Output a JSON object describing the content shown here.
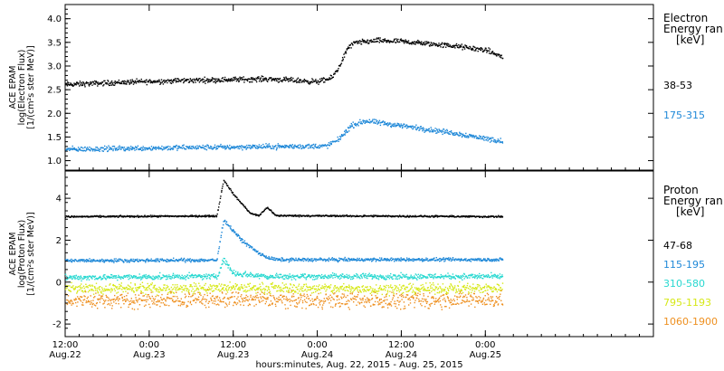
{
  "chart_data": [
    {
      "type": "scatter",
      "panel": "electron",
      "ylabel_lines": [
        "ACE EPAM",
        "log(Electron Flux)",
        "[1/(cm²s ster MeV)]"
      ],
      "ylim": [
        0.8,
        4.3
      ],
      "yticks": [
        "1.0",
        "1.5",
        "2.0",
        "2.5",
        "3.0",
        "3.5",
        "4.0"
      ],
      "ytick_values": [
        1.0,
        1.5,
        2.0,
        2.5,
        3.0,
        3.5,
        4.0
      ],
      "legend_title": [
        "Electron",
        "Energy ran",
        "[keV]"
      ],
      "series": [
        {
          "name": "38-53",
          "color": "#000000",
          "profile": [
            [
              0,
              2.62
            ],
            [
              0.35,
              2.67
            ],
            [
              0.75,
              2.71
            ],
            [
              1.2,
              2.74
            ],
            [
              1.5,
              2.68
            ],
            [
              1.58,
              2.75
            ],
            [
              1.62,
              2.95
            ],
            [
              1.68,
              3.4
            ],
            [
              1.72,
              3.5
            ],
            [
              1.85,
              3.55
            ],
            [
              2.0,
              3.53
            ],
            [
              2.3,
              3.44
            ],
            [
              2.5,
              3.35
            ],
            [
              2.6,
              3.2
            ]
          ],
          "noise": 0.08,
          "start": 0,
          "end": 2.6
        },
        {
          "name": "175-315",
          "color": "#1e88d8",
          "profile": [
            [
              0,
              1.25
            ],
            [
              0.5,
              1.28
            ],
            [
              1.0,
              1.3
            ],
            [
              1.55,
              1.32
            ],
            [
              1.62,
              1.45
            ],
            [
              1.7,
              1.75
            ],
            [
              1.78,
              1.85
            ],
            [
              2.0,
              1.75
            ],
            [
              2.3,
              1.6
            ],
            [
              2.6,
              1.42
            ]
          ],
          "noise": 0.08,
          "start": 0,
          "end": 2.6
        }
      ]
    },
    {
      "type": "scatter",
      "panel": "proton",
      "ylabel_lines": [
        "ACE EPAM",
        "log(Proton Flux)",
        "[1/(cm²s ster MeV)]"
      ],
      "ylim": [
        -2.6,
        5.3
      ],
      "yticks": [
        "-2",
        "0",
        "2",
        "4"
      ],
      "ytick_values": [
        -2,
        0,
        2,
        4
      ],
      "legend_title": [
        "Proton",
        "Energy ran",
        "[keV]"
      ],
      "series": [
        {
          "name": "47-68",
          "color": "#000000",
          "profile": [
            [
              0,
              3.15
            ],
            [
              0.9,
              3.18
            ],
            [
              0.94,
              4.9
            ],
            [
              1.0,
              4.2
            ],
            [
              1.1,
              3.3
            ],
            [
              1.15,
              3.2
            ],
            [
              1.2,
              3.6
            ],
            [
              1.25,
              3.2
            ],
            [
              2.6,
              3.15
            ]
          ],
          "noise": 0.06,
          "start": 0,
          "end": 2.6
        },
        {
          "name": "115-195",
          "color": "#1e88d8",
          "profile": [
            [
              0,
              1.05
            ],
            [
              0.9,
              1.08
            ],
            [
              0.94,
              3.0
            ],
            [
              1.05,
              2.0
            ],
            [
              1.15,
              1.4
            ],
            [
              1.2,
              1.2
            ],
            [
              1.25,
              1.1
            ],
            [
              2.6,
              1.1
            ]
          ],
          "noise": 0.12,
          "start": 0,
          "end": 2.6
        },
        {
          "name": "310-580",
          "color": "#27d8d0",
          "profile": [
            [
              0,
              0.25
            ],
            [
              0.9,
              0.3
            ],
            [
              0.94,
              1.1
            ],
            [
              1.0,
              0.45
            ],
            [
              1.2,
              0.3
            ],
            [
              2.6,
              0.3
            ]
          ],
          "noise": 0.2,
          "start": 0,
          "end": 2.6
        },
        {
          "name": "795-1193",
          "color": "#d6e817",
          "profile": [
            [
              0,
              -0.3
            ],
            [
              1.0,
              -0.25
            ],
            [
              2.0,
              -0.3
            ],
            [
              2.6,
              -0.25
            ]
          ],
          "noise": 0.35,
          "start": 0,
          "end": 2.6
        },
        {
          "name": "1060-1900",
          "color": "#ee9020",
          "profile": [
            [
              0,
              -0.85
            ],
            [
              1.0,
              -0.8
            ],
            [
              2.0,
              -0.85
            ],
            [
              2.6,
              -0.8
            ]
          ],
          "noise": 0.55,
          "start": 0,
          "end": 2.6
        }
      ]
    }
  ],
  "x_axis": {
    "xlim_days": [
      0,
      3.5
    ],
    "ticks": [
      {
        "day": 0,
        "time": "12:00",
        "date": "Aug.22"
      },
      {
        "day": 0.5,
        "time": "0:00",
        "date": "Aug.23"
      },
      {
        "day": 1.0,
        "time": "12:00",
        "date": "Aug.23"
      },
      {
        "day": 1.5,
        "time": "0:00",
        "date": "Aug.24"
      },
      {
        "day": 2.0,
        "time": "12:00",
        "date": "Aug.24"
      },
      {
        "day": 2.5,
        "time": "0:00",
        "date": "Aug.25"
      }
    ],
    "caption": "hours:minutes, Aug. 22, 2015 - Aug. 25, 2015"
  }
}
